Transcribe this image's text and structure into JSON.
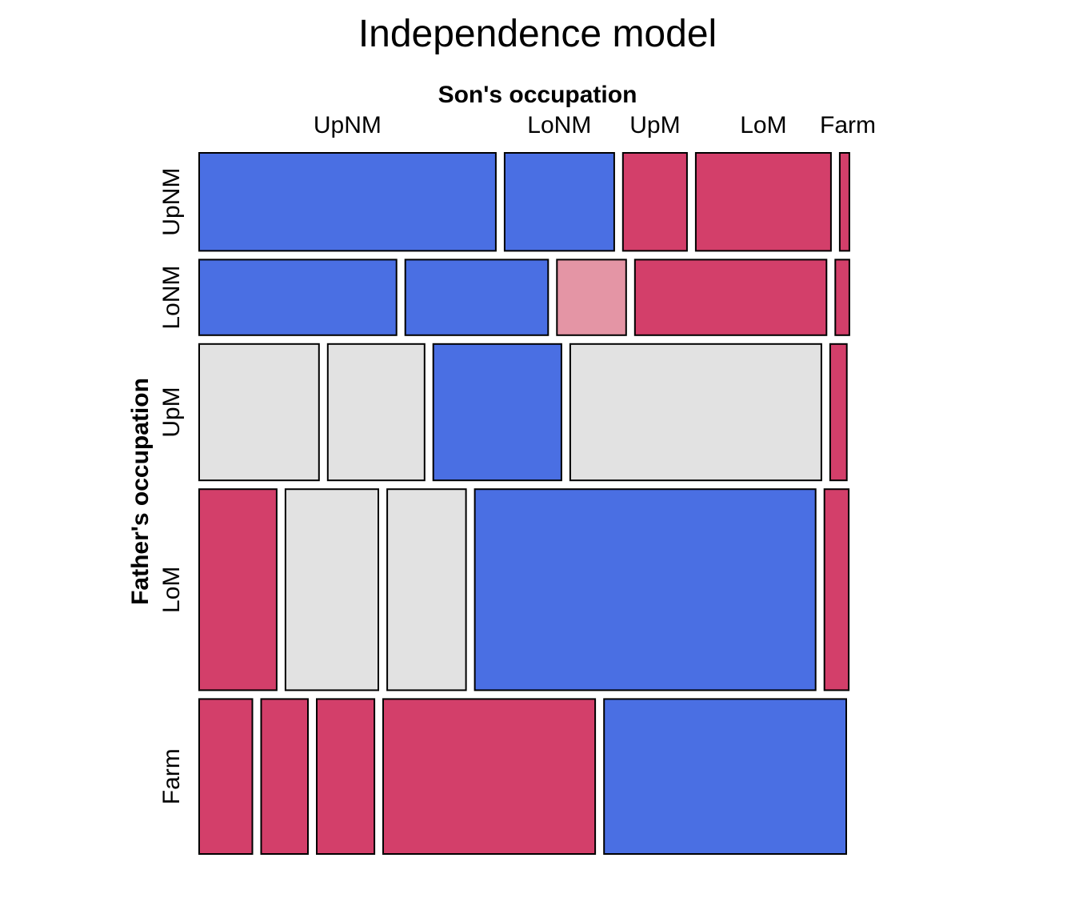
{
  "title": "Independence model",
  "chart_data": {
    "type": "mosaic",
    "title": "Independence model",
    "column_variable": "Son's occupation",
    "row_variable": "Father's occupation",
    "columns": [
      "UpNM",
      "LoNM",
      "UpM",
      "LoM",
      "Farm"
    ],
    "rows": [
      "UpNM",
      "LoNM",
      "UpM",
      "LoM",
      "Farm"
    ],
    "shading_levels": {
      "pos": "#4a6fe3",
      "neg": "#d33f6a",
      "neg_mild": "#e495a5",
      "none": "#e2e2e2"
    },
    "cells": [
      {
        "row": "UpNM",
        "segments": [
          {
            "col": "UpNM",
            "share": 0.463,
            "shade": "pos"
          },
          {
            "col": "LoNM",
            "share": 0.171,
            "shade": "pos"
          },
          {
            "col": "UpM",
            "share": 0.1,
            "shade": "neg"
          },
          {
            "col": "LoM",
            "share": 0.211,
            "shade": "neg"
          },
          {
            "col": "Farm",
            "share": 0.015,
            "shade": "neg"
          }
        ]
      },
      {
        "row": "LoNM",
        "segments": [
          {
            "col": "UpNM",
            "share": 0.308,
            "shade": "pos"
          },
          {
            "col": "LoNM",
            "share": 0.223,
            "shade": "pos"
          },
          {
            "col": "UpM",
            "share": 0.108,
            "shade": "neg_mild"
          },
          {
            "col": "LoM",
            "share": 0.299,
            "shade": "neg"
          },
          {
            "col": "Farm",
            "share": 0.022,
            "shade": "neg"
          }
        ]
      },
      {
        "row": "UpM",
        "segments": [
          {
            "col": "UpNM",
            "share": 0.187,
            "shade": "none"
          },
          {
            "col": "LoNM",
            "share": 0.151,
            "shade": "none"
          },
          {
            "col": "UpM",
            "share": 0.2,
            "shade": "pos"
          },
          {
            "col": "LoM",
            "share": 0.392,
            "shade": "none"
          },
          {
            "col": "Farm",
            "share": 0.026,
            "shade": "neg"
          }
        ]
      },
      {
        "row": "LoM",
        "segments": [
          {
            "col": "UpNM",
            "share": 0.121,
            "shade": "neg"
          },
          {
            "col": "LoNM",
            "share": 0.145,
            "shade": "none"
          },
          {
            "col": "UpM",
            "share": 0.123,
            "shade": "none"
          },
          {
            "col": "LoM",
            "share": 0.532,
            "shade": "pos"
          },
          {
            "col": "Farm",
            "share": 0.038,
            "shade": "neg"
          }
        ]
      },
      {
        "row": "Farm",
        "segments": [
          {
            "col": "UpNM",
            "share": 0.083,
            "shade": "neg"
          },
          {
            "col": "LoNM",
            "share": 0.073,
            "shade": "neg"
          },
          {
            "col": "UpM",
            "share": 0.09,
            "shade": "neg"
          },
          {
            "col": "LoM",
            "share": 0.331,
            "shade": "neg"
          },
          {
            "col": "Farm",
            "share": 0.378,
            "shade": "pos"
          }
        ]
      }
    ],
    "row_shares": [
      0.153,
      0.118,
      0.213,
      0.314,
      0.242
    ]
  }
}
